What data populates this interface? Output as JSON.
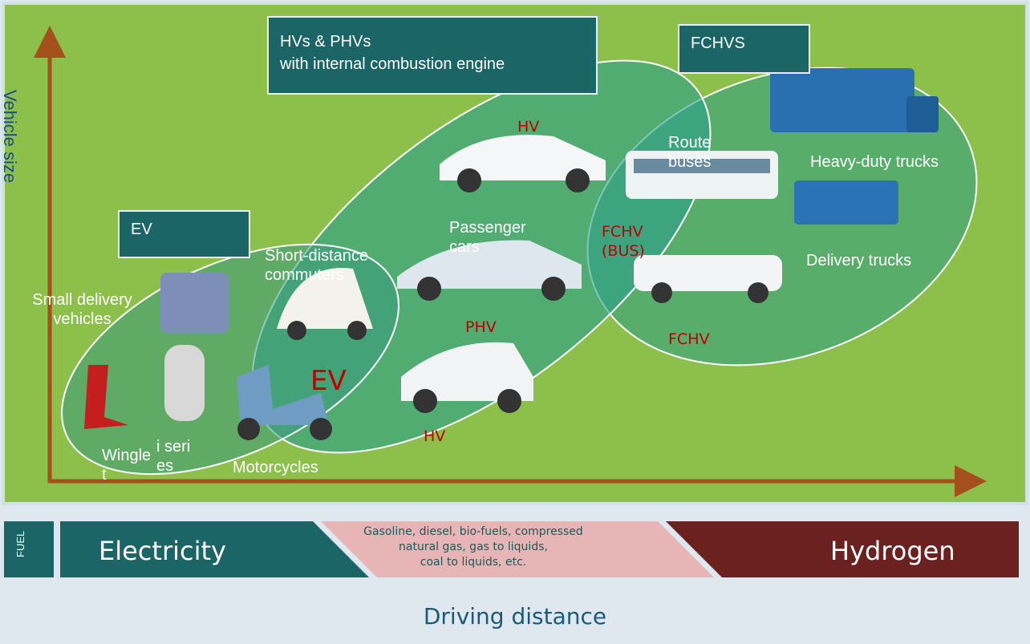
{
  "y_axis_label": "Vehicle size",
  "x_axis_label": "Driving distance",
  "groups": [
    {
      "title": [
        "EV"
      ]
    },
    {
      "title": [
        "HVs & PHVs",
        "with internal combustion engine"
      ]
    },
    {
      "title": [
        "FCHVS"
      ]
    }
  ],
  "vehicle_labels": [
    "Route buses",
    "Heavy-duty trucks",
    "Passenger cars",
    "Short-distance commuters",
    "Small delivery vehicles",
    "Delivery trucks",
    "Winglet",
    "i series",
    "Motorcycles"
  ],
  "powertrain_labels": [
    "HV",
    "FCHV (BUS)",
    "PHV",
    "FCHV",
    "EV",
    "HV"
  ],
  "fuel": {
    "label": "FUEL",
    "segments": [
      "Electricity",
      [
        "Gasoline, diesel, bio-fuels, compressed",
        "natural gas, gas to liquids,",
        "coal to liquids, etc."
      ],
      "Hydrogen"
    ]
  }
}
